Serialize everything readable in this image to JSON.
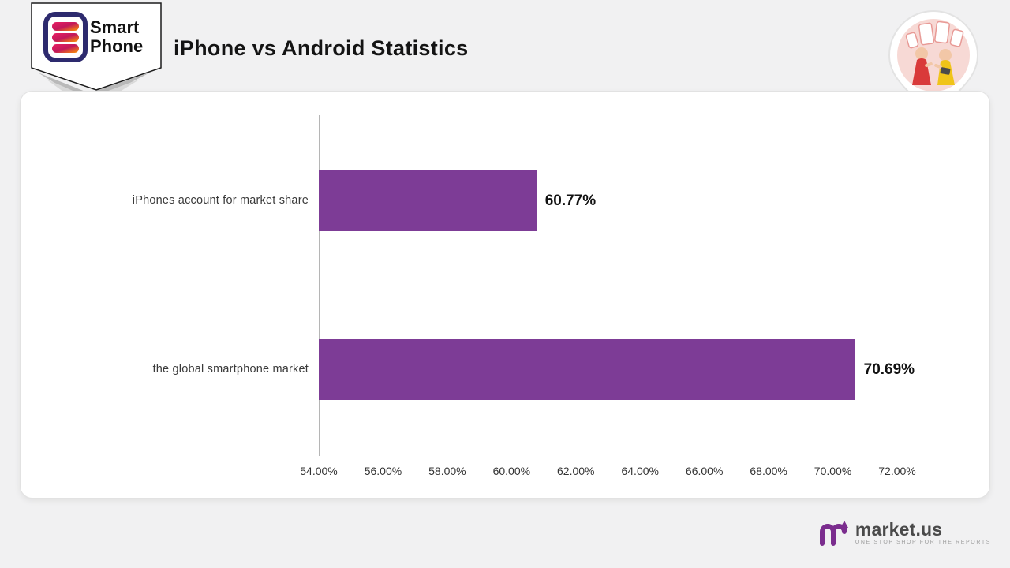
{
  "header": {
    "title": "iPhone vs Android Statistics",
    "logo": {
      "line1": "Smart",
      "line2": "Phone"
    }
  },
  "chart_data": {
    "type": "bar",
    "orientation": "horizontal",
    "title": "iPhone vs Android Statistics",
    "categories": [
      "iPhones account for market share",
      "the global smartphone market"
    ],
    "values": [
      60.77,
      70.69
    ],
    "value_labels": [
      "60.77%",
      "70.69%"
    ],
    "xlim": [
      54,
      72
    ],
    "x_ticks": [
      "54.00%",
      "56.00%",
      "58.00%",
      "60.00%",
      "62.00%",
      "64.00%",
      "66.00%",
      "68.00%",
      "70.00%",
      "72.00%"
    ],
    "bar_color": "#7d3c96",
    "grid": false,
    "legend": false
  },
  "footer": {
    "brand": "market.us",
    "tagline": "ONE STOP SHOP FOR THE REPORTS"
  },
  "colors": {
    "bar": "#7d3c96",
    "background": "#f1f1f2",
    "card": "#ffffff",
    "accent_pink": "#e91e63",
    "accent_orange": "#ff9800",
    "footer_purple": "#7b2d8e"
  }
}
